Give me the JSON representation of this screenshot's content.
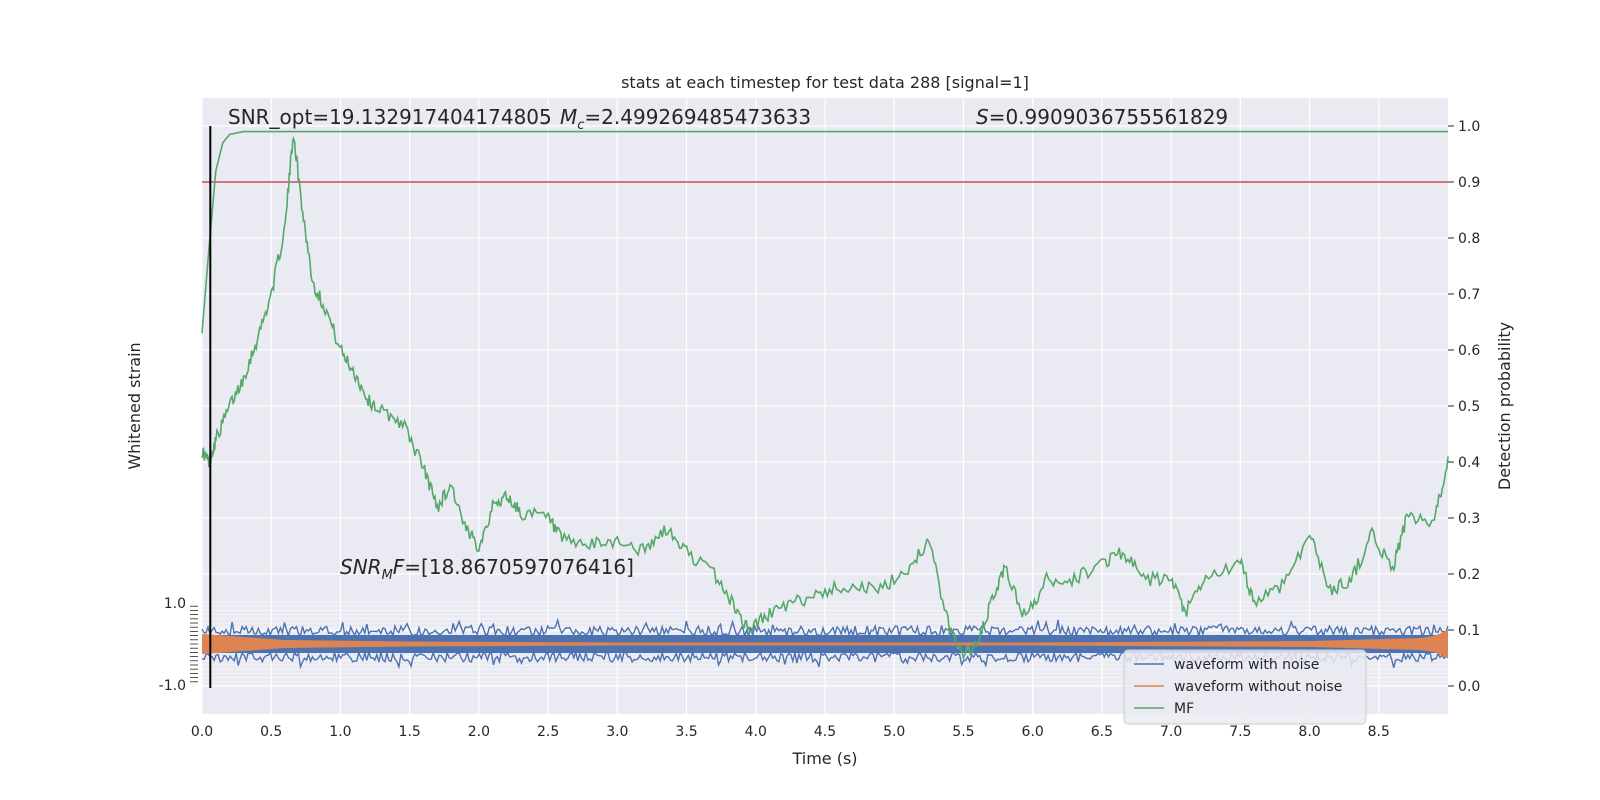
{
  "chart_data": {
    "type": "line",
    "title": "stats at each timestep for test data 288 [signal=1]",
    "xlabel": "Time (s)",
    "ylabel_left": "Whitened strain",
    "ylabel_right": "Detection probability",
    "xlim": [
      0.0,
      9.0
    ],
    "ylim_right": [
      -0.05,
      1.05
    ],
    "grid": true,
    "legend_position": "lower-right",
    "xticks": [
      "0.0",
      "0.5",
      "1.0",
      "1.5",
      "2.0",
      "2.5",
      "3.0",
      "3.5",
      "4.0",
      "4.5",
      "5.0",
      "5.5",
      "6.0",
      "6.5",
      "7.0",
      "7.5",
      "8.0",
      "8.5"
    ],
    "yticks_right": [
      "0.0",
      "0.1",
      "0.2",
      "0.3",
      "0.4",
      "0.5",
      "0.6",
      "0.7",
      "0.8",
      "0.9",
      "1.0"
    ],
    "left_axis_visible_ticks": [
      "1.0",
      "-1.0"
    ],
    "annotations": {
      "snr_opt": "SNR_opt=19.132917404174805",
      "mc": "=2.499269485473633",
      "s": "=0.9909036755561829",
      "snr_mf": "=[18.8670597076416]"
    },
    "threshold": 0.9,
    "threshold_color": "#c44e52",
    "marker_time": 0.06,
    "series": [
      {
        "name": "waveform with noise",
        "color": "#4c72b0"
      },
      {
        "name": "waveform without noise",
        "color": "#dd8452"
      },
      {
        "name": "MF",
        "color": "#55a868",
        "points": [
          [
            0.0,
            0.42
          ],
          [
            0.05,
            0.4
          ],
          [
            0.1,
            0.44
          ],
          [
            0.2,
            0.5
          ],
          [
            0.3,
            0.55
          ],
          [
            0.4,
            0.62
          ],
          [
            0.5,
            0.7
          ],
          [
            0.6,
            0.82
          ],
          [
            0.66,
            0.99
          ],
          [
            0.72,
            0.86
          ],
          [
            0.8,
            0.72
          ],
          [
            0.9,
            0.67
          ],
          [
            1.0,
            0.6
          ],
          [
            1.1,
            0.56
          ],
          [
            1.2,
            0.51
          ],
          [
            1.3,
            0.49
          ],
          [
            1.45,
            0.47
          ],
          [
            1.6,
            0.39
          ],
          [
            1.7,
            0.32
          ],
          [
            1.8,
            0.36
          ],
          [
            1.9,
            0.28
          ],
          [
            2.0,
            0.25
          ],
          [
            2.1,
            0.32
          ],
          [
            2.2,
            0.34
          ],
          [
            2.3,
            0.31
          ],
          [
            2.5,
            0.3
          ],
          [
            2.6,
            0.26
          ],
          [
            2.8,
            0.25
          ],
          [
            3.0,
            0.26
          ],
          [
            3.2,
            0.24
          ],
          [
            3.35,
            0.28
          ],
          [
            3.5,
            0.24
          ],
          [
            3.7,
            0.2
          ],
          [
            3.85,
            0.14
          ],
          [
            3.95,
            0.1
          ],
          [
            4.1,
            0.13
          ],
          [
            4.3,
            0.15
          ],
          [
            4.5,
            0.17
          ],
          [
            4.7,
            0.18
          ],
          [
            4.9,
            0.17
          ],
          [
            5.1,
            0.21
          ],
          [
            5.25,
            0.26
          ],
          [
            5.4,
            0.1
          ],
          [
            5.5,
            0.06
          ],
          [
            5.6,
            0.07
          ],
          [
            5.7,
            0.15
          ],
          [
            5.8,
            0.21
          ],
          [
            5.95,
            0.12
          ],
          [
            6.1,
            0.19
          ],
          [
            6.3,
            0.19
          ],
          [
            6.5,
            0.22
          ],
          [
            6.65,
            0.24
          ],
          [
            6.8,
            0.19
          ],
          [
            7.0,
            0.19
          ],
          [
            7.1,
            0.13
          ],
          [
            7.25,
            0.19
          ],
          [
            7.5,
            0.22
          ],
          [
            7.6,
            0.15
          ],
          [
            7.8,
            0.18
          ],
          [
            8.0,
            0.27
          ],
          [
            8.15,
            0.17
          ],
          [
            8.3,
            0.19
          ],
          [
            8.45,
            0.27
          ],
          [
            8.6,
            0.21
          ],
          [
            8.7,
            0.3
          ],
          [
            8.9,
            0.29
          ],
          [
            9.0,
            0.41
          ]
        ]
      },
      {
        "name": "Detection probability",
        "color": "#55a868",
        "points": [
          [
            0.0,
            0.63
          ],
          [
            0.05,
            0.78
          ],
          [
            0.1,
            0.92
          ],
          [
            0.15,
            0.97
          ],
          [
            0.2,
            0.985
          ],
          [
            0.3,
            0.99
          ],
          [
            9.0,
            0.99
          ]
        ]
      }
    ]
  }
}
